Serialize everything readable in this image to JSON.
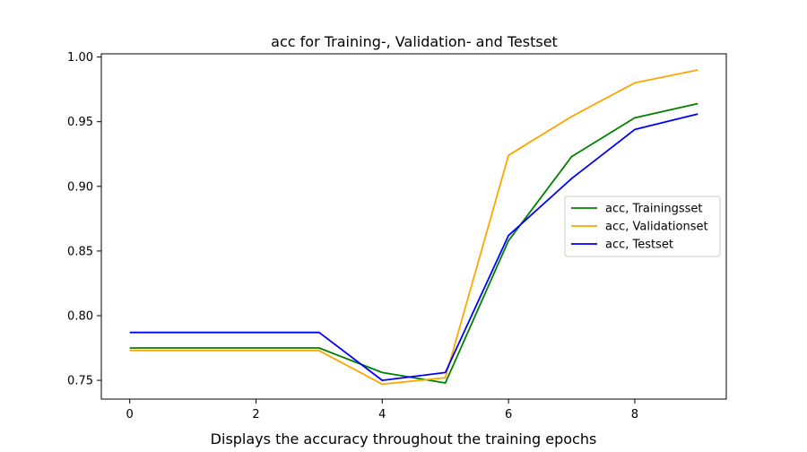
{
  "chart_data": {
    "type": "line",
    "title": "acc for Training-, Validation- and Testset",
    "caption": "Displays the accuracy throughout the training epochs",
    "xlabel": "",
    "ylabel": "",
    "x": [
      0,
      1,
      2,
      3,
      4,
      5,
      6,
      7,
      8,
      9
    ],
    "xlim": [
      -0.45,
      9.45
    ],
    "ylim": [
      0.7355,
      1.0025
    ],
    "xticks": [
      0,
      2,
      4,
      6,
      8
    ],
    "xtick_labels": [
      "0",
      "2",
      "4",
      "6",
      "8"
    ],
    "yticks": [
      0.75,
      0.8,
      0.85,
      0.9,
      0.95,
      1.0
    ],
    "ytick_labels": [
      "0.75",
      "0.80",
      "0.85",
      "0.90",
      "0.95",
      "1.00"
    ],
    "grid": false,
    "legend_position": "center-right",
    "series": [
      {
        "name": "acc, Trainingsset",
        "color": "#008000",
        "values": [
          0.775,
          0.775,
          0.775,
          0.775,
          0.756,
          0.748,
          0.858,
          0.923,
          0.953,
          0.964
        ]
      },
      {
        "name": "acc, Validationset",
        "color": "#FFA500",
        "values": [
          0.773,
          0.773,
          0.773,
          0.773,
          0.747,
          0.752,
          0.924,
          0.954,
          0.98,
          0.99
        ]
      },
      {
        "name": "acc, Testset",
        "color": "#0000FF",
        "values": [
          0.787,
          0.787,
          0.787,
          0.787,
          0.75,
          0.756,
          0.862,
          0.906,
          0.944,
          0.956
        ]
      }
    ]
  }
}
